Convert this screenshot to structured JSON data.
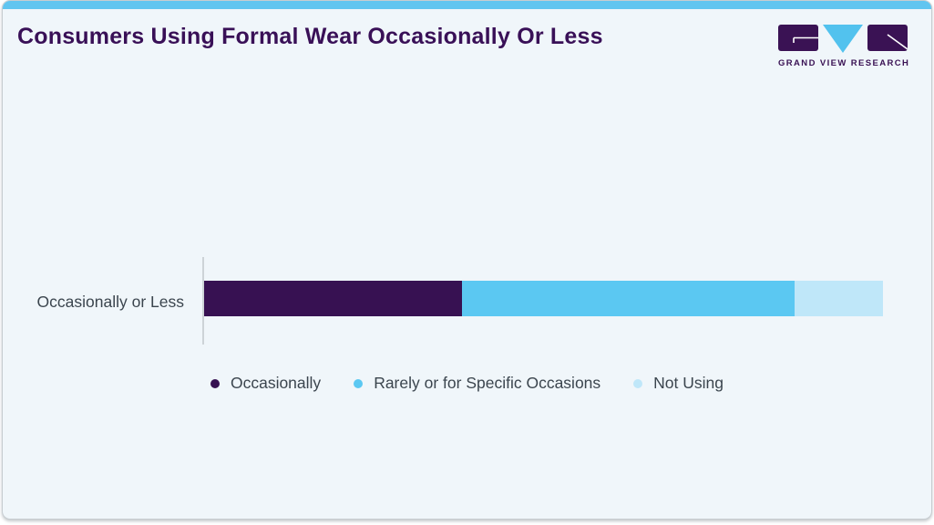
{
  "card": {
    "title": "Consumers Using Formal Wear Occasionally Or Less"
  },
  "logo": {
    "text": "GRAND VIEW RESEARCH",
    "colors": {
      "dark": "#3a1254",
      "blue": "#52c2ee"
    }
  },
  "colors": {
    "card_background": "#f0f6fa",
    "top_strip": "#61c5f0",
    "title_text": "#391057",
    "axis_line": "#cdd3d7",
    "label_text": "#3b454e"
  },
  "chart_data": {
    "type": "bar",
    "orientation": "horizontal",
    "stacked": true,
    "title": "Consumers Using Formal Wear Occasionally Or Less",
    "categories": [
      "Occasionally or Less"
    ],
    "series": [
      {
        "name": "Occasionally",
        "values": [
          38
        ],
        "color": "#371152"
      },
      {
        "name": "Rarely or for Specific Occasions",
        "values": [
          49
        ],
        "color": "#5bc8f2"
      },
      {
        "name": "Not Using",
        "values": [
          13
        ],
        "color": "#bfe7f9"
      }
    ],
    "unit": "percent",
    "xlim": [
      0,
      100
    ],
    "xlabel": "",
    "ylabel": "",
    "grid": false,
    "legend_position": "bottom"
  }
}
